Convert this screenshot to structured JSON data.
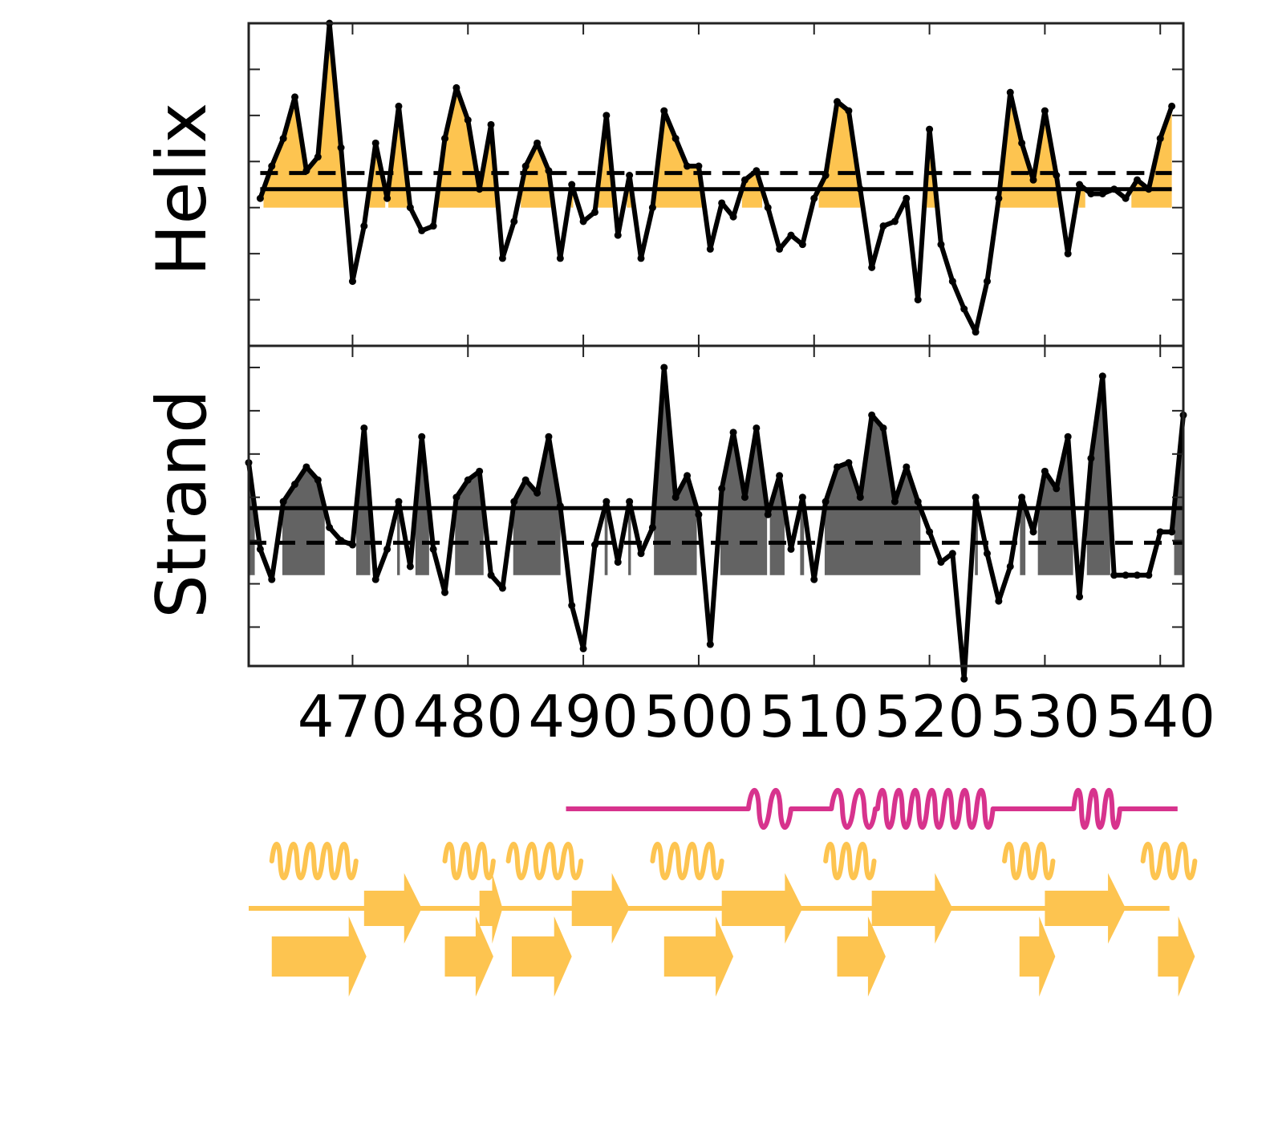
{
  "chart_data": [
    {
      "type": "line",
      "panel": "helix",
      "ylabel": "Helix",
      "xlim": [
        461,
        542
      ],
      "ylim": [
        -3,
        4
      ],
      "grid": false,
      "fill_color": "#fdc450",
      "line_color": "#000000",
      "solid_ref": 0.4,
      "dashed_ref": 0.75,
      "baseline": 0,
      "x": [
        462,
        463,
        464,
        465,
        466,
        467,
        468,
        469,
        470,
        471,
        472,
        473,
        474,
        475,
        476,
        477,
        478,
        479,
        480,
        481,
        482,
        483,
        484,
        485,
        486,
        487,
        488,
        489,
        490,
        491,
        492,
        493,
        494,
        495,
        496,
        497,
        498,
        499,
        500,
        501,
        502,
        503,
        504,
        505,
        506,
        507,
        508,
        509,
        510,
        511,
        512,
        513,
        514,
        515,
        516,
        517,
        518,
        519,
        520,
        521,
        522,
        523,
        524,
        525,
        526,
        527,
        528,
        529,
        530,
        531,
        532,
        533,
        534,
        535,
        536,
        537,
        538,
        539,
        540,
        541
      ],
      "values": [
        0.2,
        0.9,
        1.5,
        2.4,
        0.8,
        1.1,
        4.0,
        1.3,
        -1.6,
        -0.4,
        1.4,
        0.2,
        2.2,
        0.0,
        -0.5,
        -0.4,
        1.5,
        2.6,
        1.9,
        0.4,
        1.8,
        -1.1,
        -0.3,
        0.9,
        1.4,
        0.8,
        -1.1,
        0.5,
        -0.3,
        -0.1,
        2.0,
        -0.6,
        0.7,
        -1.1,
        0.0,
        2.1,
        1.5,
        0.9,
        0.9,
        -0.9,
        0.1,
        -0.2,
        0.6,
        0.8,
        0.0,
        -0.9,
        -0.6,
        -0.8,
        0.2,
        0.7,
        2.3,
        2.1,
        0.4,
        -1.3,
        -0.4,
        -0.3,
        0.2,
        -2.0,
        1.7,
        -0.8,
        -1.6,
        -2.2,
        -2.7,
        -1.6,
        0.2,
        2.5,
        1.4,
        0.6,
        2.1,
        0.7,
        -1.0,
        0.5,
        0.3,
        0.3,
        0.4,
        0.2,
        0.6,
        0.4,
        1.5,
        2.2
      ]
    },
    {
      "type": "line",
      "panel": "strand",
      "ylabel": "Strand",
      "xlim": [
        461,
        542
      ],
      "ylim": [
        -2.9,
        4.5
      ],
      "grid": false,
      "fill_color": "#636363",
      "line_color": "#000000",
      "solid_ref": 0.75,
      "dashed_ref": -0.05,
      "baseline": -0.8,
      "x": [
        461,
        462,
        463,
        464,
        465,
        466,
        467,
        468,
        469,
        470,
        471,
        472,
        473,
        474,
        475,
        476,
        477,
        478,
        479,
        480,
        481,
        482,
        483,
        484,
        485,
        486,
        487,
        488,
        489,
        490,
        491,
        492,
        493,
        494,
        495,
        496,
        497,
        498,
        499,
        500,
        501,
        502,
        503,
        504,
        505,
        506,
        507,
        508,
        509,
        510,
        511,
        512,
        513,
        514,
        515,
        516,
        517,
        518,
        519,
        520,
        521,
        522,
        523,
        524,
        525,
        526,
        527,
        528,
        529,
        530,
        531,
        532,
        533,
        534,
        535,
        536,
        537,
        538,
        539,
        540,
        541,
        542
      ],
      "values": [
        1.8,
        -0.2,
        -0.9,
        0.9,
        1.3,
        1.7,
        1.4,
        0.3,
        0.0,
        -0.1,
        2.6,
        -0.9,
        -0.2,
        0.9,
        -0.6,
        2.4,
        -0.2,
        -1.2,
        1.0,
        1.4,
        1.6,
        -0.8,
        -1.1,
        0.9,
        1.4,
        1.1,
        2.4,
        0.8,
        -1.5,
        -2.5,
        -0.1,
        0.9,
        -0.5,
        0.9,
        -0.3,
        0.3,
        4.0,
        1.0,
        1.5,
        0.6,
        -2.4,
        1.2,
        2.5,
        1.0,
        2.6,
        0.6,
        1.5,
        -0.2,
        1.0,
        -0.9,
        0.9,
        1.7,
        1.8,
        1.0,
        2.9,
        2.6,
        0.9,
        1.7,
        0.9,
        0.2,
        -0.5,
        -0.3,
        -3.2,
        1.0,
        -0.3,
        -1.4,
        -0.6,
        1.0,
        0.2,
        1.6,
        1.2,
        2.4,
        -1.3,
        1.9,
        3.8,
        -0.8,
        -0.8,
        -0.8,
        -0.8,
        0.2,
        0.2,
        2.9
      ]
    }
  ],
  "x_axis": {
    "ticks": [
      470,
      480,
      490,
      500,
      510,
      520,
      530,
      540
    ],
    "tick_labels": [
      "470",
      "480",
      "490",
      "500",
      "510",
      "520",
      "530",
      "540"
    ]
  },
  "annotation_tracks": {
    "colors": {
      "pink": "#d7338d",
      "orange": "#fdc450"
    },
    "track1_pink": {
      "line_range": [
        488.5,
        541.5
      ],
      "helices": [
        [
          504.3,
          508.0
        ],
        [
          511.5,
          515.3
        ],
        [
          515.5,
          525.5
        ],
        [
          532.5,
          536.5
        ]
      ]
    },
    "track2_orange_helices": [
      [
        463.0,
        470.3
      ],
      [
        478.0,
        482.2
      ],
      [
        483.5,
        489.8
      ],
      [
        496.0,
        502.0
      ],
      [
        511.0,
        515.2
      ],
      [
        526.5,
        530.7
      ],
      [
        538.5,
        543.0
      ]
    ],
    "track3_orange": {
      "line_range": [
        461.0,
        540.8
      ],
      "strands": [
        [
          471.0,
          476.0
        ],
        [
          481.0,
          483.0
        ],
        [
          489.0,
          494.0
        ],
        [
          502.0,
          509.0
        ],
        [
          515.0,
          522.0
        ],
        [
          530.0,
          537.0
        ]
      ]
    },
    "track4_orange_strands": [
      [
        463.0,
        471.2
      ],
      [
        478.0,
        482.2
      ],
      [
        483.8,
        489.0
      ],
      [
        497.0,
        503.0
      ],
      [
        512.0,
        516.2
      ],
      [
        527.8,
        530.9
      ],
      [
        539.8,
        543.0
      ]
    ]
  }
}
